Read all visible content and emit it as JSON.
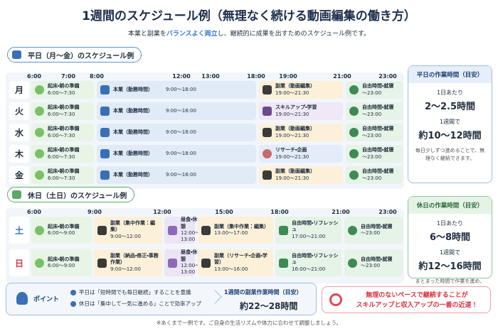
{
  "header": {
    "title": "1週間のスケジュール例（無理なく続ける動画編集の働き方）",
    "subtitle": [
      "本業と副業を",
      "バランスよく両立",
      "し、継続的に成果を出すためのスケジュール例です。"
    ]
  },
  "weekday": {
    "heading": "平日（月〜金）のスケジュール例",
    "times": [
      "6:00",
      "7:00",
      "8:00",
      "12:00",
      "13:00",
      "18:00",
      "19:00",
      "21:00",
      "23:00"
    ],
    "rows": [
      {
        "day": "月",
        "blocks": [
          {
            "title": "起床・朝の準備",
            "time": "6:00〜7:30"
          },
          {
            "title": "本業（勤務時間）",
            "time": "9:00〜18:00"
          },
          {
            "title": "副業（動画編集）",
            "time": "19:00〜21:30"
          },
          {
            "title": "自由時間・就寝",
            "time": "〜23:00"
          }
        ]
      },
      {
        "day": "火",
        "blocks": [
          {
            "title": "起床・朝の準備",
            "time": "6:00〜7:30"
          },
          {
            "title": "本業（勤務時間）",
            "time": "9:00〜18:00"
          },
          {
            "title": "スキルアップ・学習",
            "time": "19:00〜21:30"
          },
          {
            "title": "自由時間・就寝",
            "time": "〜23:00"
          }
        ]
      },
      {
        "day": "水",
        "blocks": [
          {
            "title": "起床・朝の準備",
            "time": "6:00〜7:30"
          },
          {
            "title": "本業（勤務時間）",
            "time": "9:00〜18:00"
          },
          {
            "title": "副業（動画編集）",
            "time": "19:00〜21:30"
          },
          {
            "title": "自由時間・就寝",
            "time": "〜23:00"
          }
        ]
      },
      {
        "day": "木",
        "blocks": [
          {
            "title": "起床・朝の準備",
            "time": "6:00〜7:30"
          },
          {
            "title": "本業（勤務時間）",
            "time": "9:00〜18:00"
          },
          {
            "title": "リサーチ・企画",
            "time": "19:00〜21:30"
          },
          {
            "title": "自由時間・就寝",
            "time": "〜23:00"
          }
        ]
      },
      {
        "day": "金",
        "blocks": [
          {
            "title": "起床・朝の準備",
            "time": "6:00〜7:30"
          },
          {
            "title": "本業（勤務時間）",
            "time": "9:00〜18:00"
          },
          {
            "title": "副業（動画編集）",
            "time": "19:00〜21:30"
          },
          {
            "title": "自由時間・就寝",
            "time": "〜23:00"
          }
        ]
      }
    ]
  },
  "weekday_summary": {
    "title": "平日の作業時間（目安）",
    "per_day_label": "1日あたり",
    "per_day": "2〜2.5時間",
    "per_week_label": "1週間で",
    "per_week": "約10〜12時間",
    "note": "毎日少しずつ進めることで、無理なく継続できます。"
  },
  "holiday": {
    "heading": "休日（土日）のスケジュール例",
    "times": [
      "6:00",
      "9:00",
      "12:00",
      "15:00",
      "18:00",
      "21:00",
      "23:00"
    ],
    "rows": [
      {
        "day": "土",
        "blocks": [
          {
            "title": "起床・朝の準備",
            "time": "6:00〜9:00"
          },
          {
            "title": "副業（集中作業：編集）",
            "time": "9:00〜12:00"
          },
          {
            "title": "昼食・休憩",
            "time": "12:00〜13:00"
          },
          {
            "title": "副業（集中作業：編集）",
            "time": "13:00〜17:00"
          },
          {
            "title": "自由時間・リフレッシュ",
            "time": "17:00〜21:00"
          },
          {
            "title": "自由時間・就寝",
            "time": "〜23:00"
          }
        ]
      },
      {
        "day": "日",
        "blocks": [
          {
            "title": "起床・朝の準備",
            "time": "6:00〜9:00"
          },
          {
            "title": "副業（納品・修正・事務作業）",
            "time": "9:00〜12:00"
          },
          {
            "title": "昼食・休憩",
            "time": "12:00〜13:00"
          },
          {
            "title": "副業（リサーチ・企画・学習）",
            "time": "13:00〜16:00"
          },
          {
            "title": "自由時間・リフレッシュ",
            "time": "16:00〜21:00"
          },
          {
            "title": "自由時間・就寝",
            "time": "〜23:00"
          }
        ]
      }
    ]
  },
  "holiday_summary": {
    "title": "休日の作業時間（目安）",
    "per_day_label": "1日あたり",
    "per_day": "6〜8時間",
    "per_week_label": "1週間で",
    "per_week": "約12〜16時間",
    "note": "まとまった時間で作業を進め、質の高いアウトプットを目指します。"
  },
  "points": {
    "label": "ポイント",
    "items": [
      "平日は「短時間でも毎日継続」することを意識",
      "休日は「集中して一気に進める」ことで効率アップ"
    ],
    "total_label": "1週間の副業作業時間（目安）",
    "total": "約22〜28時間"
  },
  "message": [
    "無理のないペースで継続することが",
    "スキルアップと収入アップの一番の近道！"
  ],
  "footnote": "※あくまで一例です。ご自身の生活リズムや体力に合わせて調整しましょう。"
}
